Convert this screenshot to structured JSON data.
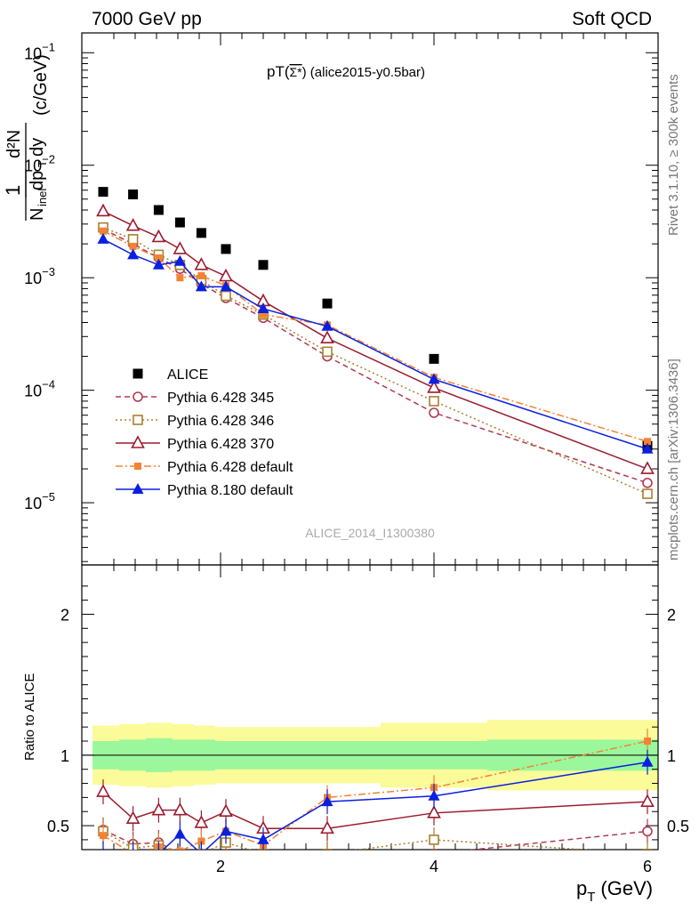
{
  "header": {
    "left": "7000 GeV pp",
    "right": "Soft QCD"
  },
  "side_labels": {
    "rivet": "Rivet 3.1.10, ≥ 300k events",
    "site": "mcplots.cern.ch [arXiv:1306.3436]"
  },
  "chart_data": [
    {
      "type": "scatter",
      "panel": "main",
      "title": "pT(Σ*‾) (alice2015-y0.5bar)",
      "title_main": "pT(",
      "title_symbol": "Σ*",
      "title_rest": ") (alice2015-y0.5bar)",
      "watermark": "ALICE_2014_I1300380",
      "ylabel": "1/N_inel d²N/dp_T dy (c/GeV)",
      "ylabel_unit": "(c/GeV)",
      "yscale": "log",
      "xlim": [
        0.7,
        6.1
      ],
      "ylim": [
        2.8e-06,
        0.15
      ],
      "ytick_labels": [
        "10^-5",
        "10^-4",
        "10^-3",
        "10^-2",
        "10^-1"
      ],
      "legend_position": "lower-left",
      "series": [
        {
          "name": "ALICE",
          "color": "#000000",
          "marker": "square-filled",
          "line": "none",
          "x": [
            0.9,
            1.18,
            1.42,
            1.62,
            1.82,
            2.05,
            2.4,
            3.0,
            4.0,
            6.0
          ],
          "y": [
            0.0058,
            0.0055,
            0.004,
            0.0031,
            0.0025,
            0.0018,
            0.0013,
            0.00059,
            0.00019,
            3.2e-05
          ]
        },
        {
          "name": "Pythia 6.428 345",
          "color": "#b03a55",
          "marker": "circle-open",
          "line": "dashed",
          "x": [
            0.9,
            1.18,
            1.42,
            1.62,
            1.82,
            2.05,
            2.4,
            3.0,
            4.0,
            6.0
          ],
          "y": [
            0.0027,
            0.002,
            0.0015,
            0.0012,
            0.00088,
            0.00066,
            0.00044,
            0.0002,
            6.3e-05,
            1.5e-05
          ]
        },
        {
          "name": "Pythia 6.428 346",
          "color": "#a88030",
          "marker": "square-open",
          "line": "dotted",
          "x": [
            0.9,
            1.18,
            1.42,
            1.62,
            1.82,
            2.05,
            2.4,
            3.0,
            4.0,
            6.0
          ],
          "y": [
            0.0028,
            0.0022,
            0.0016,
            0.0013,
            0.00095,
            0.00069,
            0.00047,
            0.00022,
            8e-05,
            1.2e-05
          ]
        },
        {
          "name": "Pythia 6.428 370",
          "color": "#9b1c2e",
          "marker": "triangle-open",
          "line": "solid",
          "x": [
            0.9,
            1.18,
            1.42,
            1.62,
            1.82,
            2.05,
            2.4,
            3.0,
            4.0,
            6.0
          ],
          "y": [
            0.0039,
            0.0029,
            0.0023,
            0.0018,
            0.0013,
            0.00103,
            0.00062,
            0.00029,
            0.000105,
            2e-05
          ]
        },
        {
          "name": "Pythia 6.428 default",
          "color": "#f58233",
          "marker": "square-filled-small",
          "line": "dashdot",
          "x": [
            0.9,
            1.18,
            1.42,
            1.62,
            1.82,
            2.05,
            2.4,
            3.0,
            4.0,
            6.0
          ],
          "y": [
            0.0026,
            0.0019,
            0.0015,
            0.001,
            0.00104,
            0.00085,
            0.00047,
            0.00038,
            0.00013,
            3.5e-05
          ]
        },
        {
          "name": "Pythia 8.180 default",
          "color": "#0a1fe0",
          "marker": "triangle-filled",
          "line": "solid",
          "x": [
            0.9,
            1.18,
            1.42,
            1.62,
            1.82,
            2.05,
            2.4,
            3.0,
            4.0,
            6.0
          ],
          "y": [
            0.0022,
            0.0016,
            0.0013,
            0.0014,
            0.00083,
            0.00083,
            0.00053,
            0.00037,
            0.000125,
            3e-05
          ]
        }
      ]
    },
    {
      "type": "line",
      "panel": "ratio",
      "ylabel": "Ratio to ALICE",
      "xlabel": "p_T (GeV)",
      "xlabel_main": "p",
      "xlabel_sub": "T",
      "xlabel_unit": "(GeV)",
      "xlim": [
        0.7,
        6.1
      ],
      "ylim": [
        0.33,
        2.35
      ],
      "xtick_labels": [
        "2",
        "4",
        "6"
      ],
      "ytick_labels": [
        "0.5",
        "1",
        "2"
      ],
      "bands": {
        "bin_edges": [
          0.8,
          1.05,
          1.3,
          1.55,
          1.75,
          1.95,
          2.2,
          2.6,
          3.5,
          4.5,
          6.5
        ],
        "green_low": [
          0.9,
          0.89,
          0.88,
          0.89,
          0.89,
          0.9,
          0.9,
          0.9,
          0.9,
          0.89
        ],
        "green_high": [
          1.1,
          1.11,
          1.12,
          1.11,
          1.11,
          1.1,
          1.1,
          1.1,
          1.1,
          1.11
        ],
        "yellow_low": [
          0.79,
          0.78,
          0.77,
          0.78,
          0.79,
          0.8,
          0.8,
          0.8,
          0.77,
          0.75
        ],
        "yellow_high": [
          1.21,
          1.22,
          1.23,
          1.22,
          1.21,
          1.2,
          1.2,
          1.2,
          1.23,
          1.25
        ]
      },
      "series": [
        {
          "name": "Pythia 6.428 345",
          "color": "#b03a55",
          "marker": "circle-open",
          "line": "dashed",
          "x": [
            0.9,
            1.18,
            1.42,
            1.62,
            1.82,
            2.05,
            2.4,
            3.0,
            4.0,
            6.0
          ],
          "y": [
            0.47,
            0.37,
            0.38,
            0.3,
            0.3,
            0.3,
            0.3,
            0.3,
            0.3,
            0.46
          ]
        },
        {
          "name": "Pythia 6.428 346",
          "color": "#a88030",
          "marker": "square-open",
          "line": "dotted",
          "x": [
            0.9,
            1.18,
            1.42,
            1.62,
            1.82,
            2.05,
            2.4,
            3.0,
            4.0,
            6.0
          ],
          "y": [
            0.46,
            0.34,
            0.36,
            0.3,
            0.3,
            0.38,
            0.3,
            0.3,
            0.4,
            0.3
          ]
        },
        {
          "name": "Pythia 6.428 370",
          "color": "#9b1c2e",
          "marker": "triangle-open",
          "line": "solid",
          "x": [
            0.9,
            1.18,
            1.42,
            1.62,
            1.82,
            2.05,
            2.4,
            3.0,
            4.0,
            6.0
          ],
          "y": [
            0.74,
            0.55,
            0.61,
            0.61,
            0.52,
            0.6,
            0.48,
            0.48,
            0.59,
            0.67
          ]
        },
        {
          "name": "Pythia 6.428 default",
          "color": "#f58233",
          "marker": "square-filled-small",
          "line": "dashdot",
          "x": [
            0.9,
            1.18,
            1.42,
            1.62,
            1.82,
            2.05,
            2.4,
            3.0,
            4.0,
            6.0
          ],
          "y": [
            0.43,
            0.3,
            0.35,
            0.32,
            0.39,
            0.46,
            0.36,
            0.7,
            0.77,
            1.1
          ]
        },
        {
          "name": "Pythia 8.180 default",
          "color": "#0a1fe0",
          "marker": "triangle-filled",
          "line": "solid",
          "x": [
            0.9,
            1.18,
            1.42,
            1.62,
            1.82,
            2.05,
            2.4,
            3.0,
            4.0,
            6.0
          ],
          "y": [
            0.3,
            0.3,
            0.3,
            0.44,
            0.3,
            0.46,
            0.4,
            0.67,
            0.71,
            0.95
          ]
        }
      ]
    }
  ]
}
